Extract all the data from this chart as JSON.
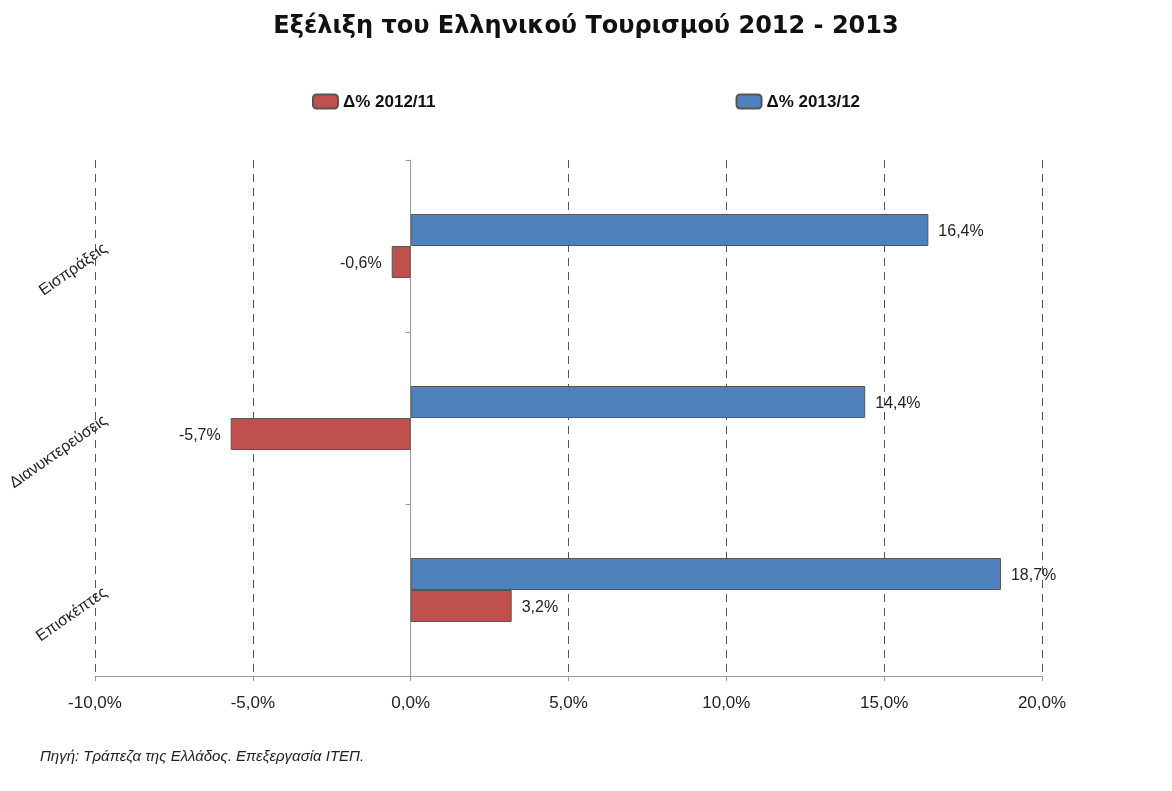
{
  "chart_data": {
    "type": "bar",
    "orientation": "horizontal",
    "title": "Εξέλιξη του Ελληνικού Τουρισμού 2012 - 2013",
    "categories": [
      "Εισπράξεις",
      "Διανυκτερεύσεις",
      "Επισκέπτες"
    ],
    "series": [
      {
        "name": "Δ% 2012/11",
        "color": "#c0504d",
        "values": [
          -0.6,
          -5.7,
          3.2
        ],
        "value_labels": [
          "-0,6%",
          "-5,7%",
          "3,2%"
        ]
      },
      {
        "name": "Δ% 2013/12",
        "color": "#4f81bd",
        "values": [
          16.4,
          14.4,
          18.7
        ],
        "value_labels": [
          "16,4%",
          "14,4%",
          "18,7%"
        ]
      }
    ],
    "xlim": [
      -10,
      20
    ],
    "xticks": [
      {
        "value": -10,
        "label": "-10,0%"
      },
      {
        "value": -5,
        "label": "-5,0%"
      },
      {
        "value": 0,
        "label": "0,0%"
      },
      {
        "value": 5,
        "label": "5,0%"
      },
      {
        "value": 10,
        "label": "10,0%"
      },
      {
        "value": 15,
        "label": "15,0%"
      },
      {
        "value": 20,
        "label": "20,0%"
      }
    ],
    "grid": "x",
    "legend": "top",
    "annotations": [
      "Πηγή: Τράπεζα της Ελλάδος. Επεξεργασία ΙΤΕΠ."
    ]
  }
}
